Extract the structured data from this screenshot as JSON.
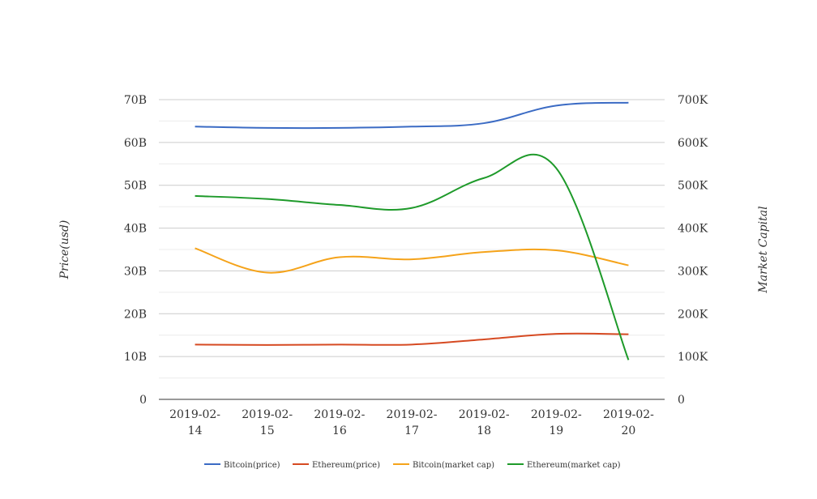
{
  "chart_data": {
    "type": "line",
    "title": "",
    "xlabel": "",
    "ylabel": "Price(usd)",
    "y2label": "Market Capital",
    "categories": [
      [
        "2019-02-",
        "14"
      ],
      [
        "2019-02-",
        "15"
      ],
      [
        "2019-02-",
        "16"
      ],
      [
        "2019-02-",
        "17"
      ],
      [
        "2019-02-",
        "18"
      ],
      [
        "2019-02-",
        "19"
      ],
      [
        "2019-02-",
        "20"
      ]
    ],
    "ylim": [
      0,
      70000000000
    ],
    "y_ticks": [
      "0",
      "10B",
      "20B",
      "30B",
      "40B",
      "50B",
      "60B",
      "70B"
    ],
    "y2lim": [
      0,
      700000
    ],
    "y2_ticks": [
      "0",
      "100K",
      "200K",
      "300K",
      "400K",
      "500K",
      "600K",
      "700K"
    ],
    "grid": true,
    "legend_position": "bottom",
    "series": [
      {
        "name": "Bitcoin(price)",
        "axis": "left",
        "color": "#3b6bc4",
        "values": [
          63700000000,
          63400000000,
          63400000000,
          63700000000,
          64500000000,
          68600000000,
          69300000000
        ]
      },
      {
        "name": "Ethereum(price)",
        "axis": "left",
        "color": "#d64a22",
        "values": [
          12800000000,
          12700000000,
          12800000000,
          12800000000,
          14000000000,
          15300000000,
          15200000000
        ]
      },
      {
        "name": "Bitcoin(market cap)",
        "axis": "right",
        "color": "#f5a31a",
        "values": [
          353000,
          296000,
          332000,
          327000,
          344000,
          348000,
          313000
        ]
      },
      {
        "name": "Ethereum(market cap)",
        "axis": "right",
        "color": "#1e9a2a",
        "values": [
          475000,
          468000,
          454000,
          447000,
          517000,
          540000,
          92000
        ]
      }
    ]
  }
}
